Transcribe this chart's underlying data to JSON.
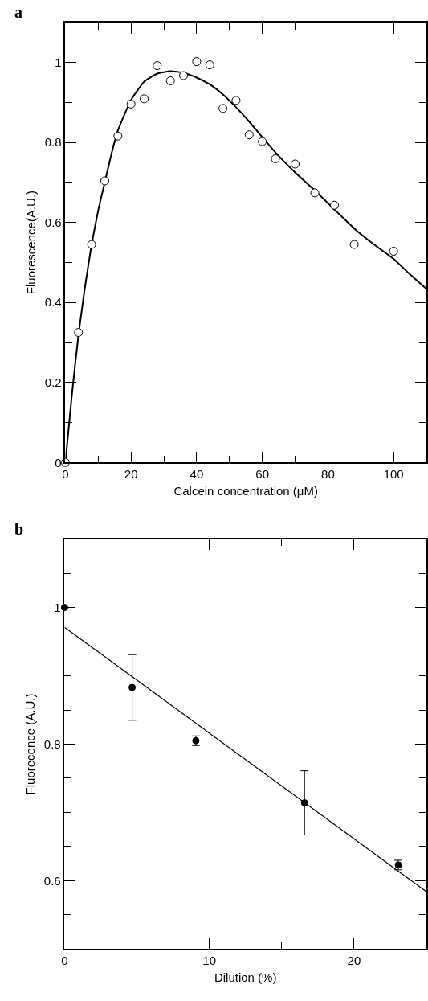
{
  "chart_data": [
    {
      "type": "scatter",
      "title": "a",
      "xlabel": "Calcein concentration (μM)",
      "ylabel": "Fluorescence(A.U.)",
      "xlim": [
        0,
        110
      ],
      "ylim": [
        0,
        1.1
      ],
      "xticks": [
        0,
        {
          "value": 10,
          "label": null
        },
        20,
        {
          "value": 30,
          "label": null
        },
        40,
        {
          "value": 50,
          "label": null
        },
        60,
        {
          "value": 70,
          "label": null
        },
        80,
        {
          "value": 90,
          "label": null
        },
        100,
        {
          "value": 110,
          "label": null
        }
      ],
      "yticks": [
        0,
        {
          "value": 0.1,
          "label": null
        },
        0.2,
        {
          "value": 0.3,
          "label": null
        },
        0.4,
        {
          "value": 0.5,
          "label": null
        },
        0.6,
        {
          "value": 0.7,
          "label": null
        },
        0.8,
        {
          "value": 0.9,
          "label": null
        },
        1
      ],
      "grid": false,
      "series": [
        {
          "type": "line",
          "color": "#000000",
          "line_style": "solid",
          "marker": "none",
          "x": [
            0,
            2,
            4,
            6,
            8,
            10,
            12,
            14,
            16,
            20,
            24,
            28,
            32,
            36,
            40,
            44,
            48,
            52,
            56,
            60,
            64,
            70,
            76,
            82,
            88,
            94,
            100,
            105,
            110
          ],
          "values": [
            0,
            0.17,
            0.32,
            0.44,
            0.545,
            0.63,
            0.7,
            0.77,
            0.83,
            0.906,
            0.952,
            0.972,
            0.978,
            0.974,
            0.962,
            0.945,
            0.92,
            0.888,
            0.852,
            0.813,
            0.775,
            0.725,
            0.68,
            0.632,
            0.585,
            0.545,
            0.509,
            0.47,
            0.434
          ]
        },
        {
          "color": "#ffffff",
          "marker": "circle",
          "x": [
            0,
            4,
            8,
            12,
            16,
            20,
            24,
            28,
            32,
            36,
            40,
            44,
            48,
            52,
            56,
            60,
            64,
            70,
            76,
            82,
            88,
            100
          ],
          "values": [
            0,
            0.325,
            0.545,
            0.704,
            0.816,
            0.896,
            0.909,
            0.992,
            0.954,
            0.967,
            1.002,
            0.994,
            0.885,
            0.905,
            0.819,
            0.802,
            0.759,
            0.746,
            0.674,
            0.643,
            0.545,
            0.528
          ]
        }
      ]
    },
    {
      "type": "scatter",
      "title": "b",
      "xlabel": "Dilution (%)",
      "ylabel": "Fluorecence (A.U.)",
      "xlim": [
        0,
        25
      ],
      "ylim": [
        0.5,
        1.1
      ],
      "xticks": [
        0,
        {
          "value": 5,
          "label": null
        },
        10,
        {
          "value": 15,
          "label": null
        },
        20
      ],
      "yticks": [
        {
          "value": 0.55,
          "label": null
        },
        0.6,
        {
          "value": 0.65,
          "label": null
        },
        {
          "value": 0.7,
          "label": null
        },
        {
          "value": 0.75,
          "label": null
        },
        0.8,
        {
          "value": 0.85,
          "label": null
        },
        {
          "value": 0.9,
          "label": null
        },
        {
          "value": 0.95,
          "label": null
        },
        1,
        {
          "value": 1.05,
          "label": null
        }
      ],
      "grid": false,
      "series": [
        {
          "type": "line",
          "color": "#000000",
          "line_style": "solid",
          "marker": "none",
          "x": [
            0,
            25
          ],
          "values": [
            0.971,
            0.584
          ]
        },
        {
          "color": "#000000",
          "marker": "circle",
          "x": [
            0,
            4.67,
            9.07,
            16.58,
            23.06
          ],
          "values": [
            1.0,
            0.883,
            0.805,
            0.714,
            0.623
          ],
          "errors": [
            null,
            0.048,
            0.007,
            0.047,
            0.007
          ]
        }
      ]
    }
  ]
}
